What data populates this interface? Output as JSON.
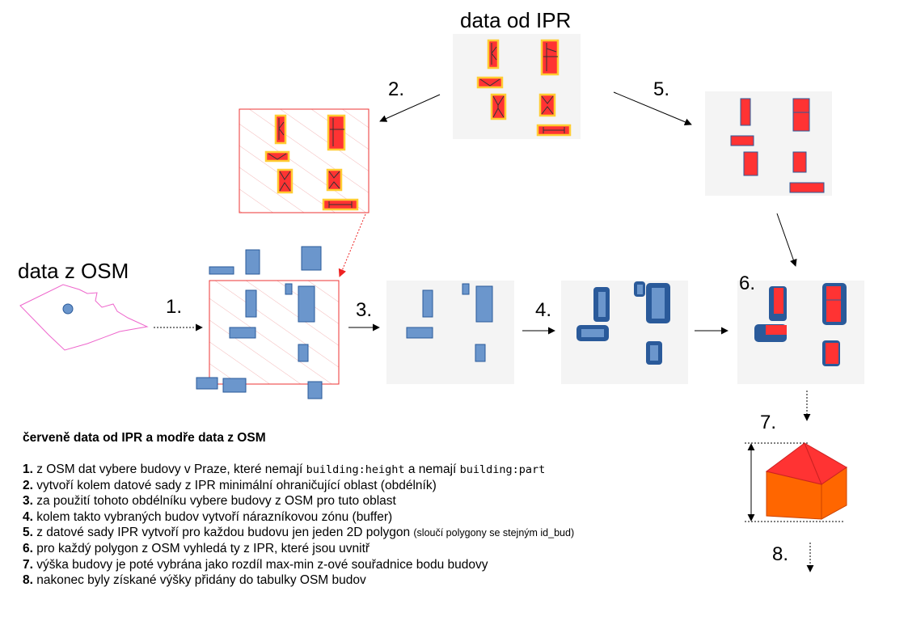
{
  "titles": {
    "ipr": "data od IPR",
    "osm": "data z OSM"
  },
  "steps": [
    "1.",
    "2.",
    "3.",
    "4.",
    "5.",
    "6.",
    "7.",
    "8."
  ],
  "legend": {
    "heading": "červeně data od IPR a modře data z OSM",
    "items": [
      {
        "num": "1.",
        "pre": " z OSM dat vybere budovy v Praze, které nemají ",
        "code1": "building:height",
        "mid": " a nemají ",
        "code2": "building:part"
      },
      {
        "num": "2.",
        "text": " vytvoří kolem datové sady z IPR minimální ohraničující oblast (obdélník)"
      },
      {
        "num": "3.",
        "text": " za použití tohoto obdélníku vybere budovy z OSM pro tuto oblast"
      },
      {
        "num": "4.",
        "text": " kolem takto vybraných budov vytvoří nárazníkovou zónu (buffer)"
      },
      {
        "num": "5.",
        "text": " z datové sady IPR vytvoří pro každou budovu jen jeden 2D polygon ",
        "small": "(sloučí polygony se stejným id_bud)"
      },
      {
        "num": "6.",
        "text": " pro každý polygon z OSM vyhledá ty z IPR, které jsou uvnitř"
      },
      {
        "num": "7.",
        "text": " výška budovy je poté vybrána jako rozdíl max-min z-ové souřadnice bodu budovy"
      },
      {
        "num": "8.",
        "text": " nakonec byly získané výšky přidány do tabulky OSM budov"
      }
    ]
  },
  "colors": {
    "ipr_red": "#ff3333",
    "ipr_outline": "#ffcc33",
    "osm_blue": "#6b96cc",
    "osm_dark": "#2a5a9a",
    "panel_bg": "#f4f4f4",
    "boundary_pink": "#ee66cc",
    "roof_red": "#ff3333",
    "house_orange": "#ff6600"
  }
}
